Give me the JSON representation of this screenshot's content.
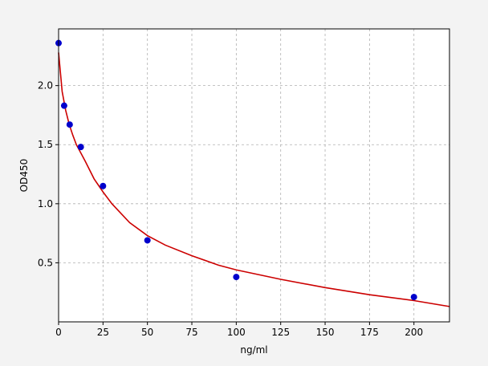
{
  "chart_data": {
    "type": "scatter",
    "title": "",
    "xlabel": "ng/ml",
    "ylabel": "OD450",
    "xlim": [
      0,
      220
    ],
    "ylim": [
      0.0,
      2.48
    ],
    "x_ticks": [
      0,
      25,
      50,
      75,
      100,
      125,
      150,
      175,
      200
    ],
    "y_ticks": [
      0.5,
      1.0,
      1.5,
      2.0
    ],
    "grid": true,
    "legend": "none",
    "colors": {
      "background": "#f3f3f3",
      "plot_area": "#ffffff",
      "points": "#0000cc",
      "fit_line": "#cc0000",
      "grid": "#b0b0b0"
    },
    "series": [
      {
        "kind": "points",
        "x": [
          0,
          3.12,
          6.25,
          12.5,
          25,
          50,
          100,
          200
        ],
        "y": [
          2.36,
          1.83,
          1.67,
          1.48,
          1.15,
          0.69,
          0.38,
          0.21
        ]
      },
      {
        "kind": "fit-curve",
        "x": [
          0,
          2,
          4,
          6,
          8,
          10,
          12.5,
          15,
          20,
          25,
          30,
          40,
          50,
          60,
          75,
          90,
          100,
          125,
          150,
          175,
          200,
          220
        ],
        "y": [
          2.28,
          1.95,
          1.79,
          1.67,
          1.58,
          1.5,
          1.43,
          1.36,
          1.21,
          1.1,
          1.0,
          0.84,
          0.73,
          0.65,
          0.56,
          0.48,
          0.44,
          0.36,
          0.29,
          0.23,
          0.18,
          0.13
        ]
      }
    ]
  }
}
